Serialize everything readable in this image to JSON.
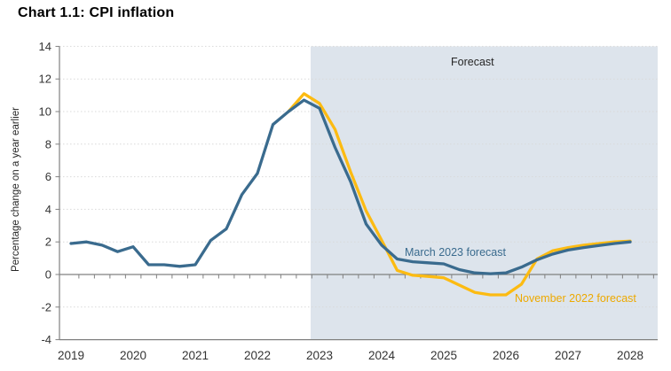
{
  "title": "Chart 1.1: CPI inflation",
  "chart_data": {
    "type": "line",
    "title": "Chart 1.1: CPI inflation",
    "xlabel": "",
    "ylabel": "Percentage change on a year earlier",
    "ylim": [
      -4,
      14
    ],
    "ytick_labels": [
      "14",
      "12",
      "10",
      "8",
      "6",
      "4",
      "2",
      "0",
      "-2",
      "-4"
    ],
    "gridline_values": [
      14,
      12,
      10,
      8,
      6,
      4,
      2,
      -2
    ],
    "grid": "dotted horizontal",
    "x_unit": "quarterly",
    "x_start": "2019Q1",
    "x_end": "2028Q1",
    "x_tick_labels": [
      "2019",
      "2020",
      "2021",
      "2022",
      "2023",
      "2024",
      "2025",
      "2026",
      "2027",
      "2028"
    ],
    "forecast_region": {
      "label": "Forecast",
      "start": "2023Q1",
      "fill_color": "#dde4ec"
    },
    "legend_position": "inline labels on lines",
    "series": [
      {
        "name": "November 2022 forecast",
        "color": "#fcbb12",
        "label_color": "#eda900",
        "start_quarter": "2022Q3",
        "start_index": 14,
        "values": [
          10.0,
          11.1,
          10.5,
          8.9,
          6.3,
          3.9,
          2.1,
          0.25,
          -0.05,
          -0.12,
          -0.2,
          -0.65,
          -1.1,
          -1.25,
          -1.25,
          -0.6,
          0.95,
          1.45,
          1.65,
          1.8,
          1.9,
          2.0,
          2.05
        ]
      },
      {
        "name": "March 2023 forecast",
        "color": "#3a6b8e",
        "label_color": "#3a6b8e",
        "start_quarter": "2019Q1",
        "start_index": 0,
        "values": [
          1.9,
          2.0,
          1.8,
          1.4,
          1.7,
          0.6,
          0.6,
          0.5,
          0.6,
          2.1,
          2.8,
          4.9,
          6.2,
          9.2,
          10.0,
          10.7,
          10.2,
          7.8,
          5.7,
          3.1,
          1.8,
          0.95,
          0.78,
          0.72,
          0.65,
          0.3,
          0.1,
          0.05,
          0.1,
          0.45,
          0.9,
          1.25,
          1.5,
          1.65,
          1.78,
          1.9,
          2.0
        ]
      }
    ]
  },
  "annotations": {
    "forecast_label": "Forecast",
    "march_label": "March 2023 forecast",
    "november_label": "November 2022 forecast"
  },
  "colors": {
    "march_line": "#3a6b8e",
    "november_line": "#fcbb12",
    "forecast_shade": "#dde4ec",
    "axis": "#808080",
    "gridline": "#d9d9d9",
    "tick_text": "#333333",
    "title_text": "#000000"
  }
}
